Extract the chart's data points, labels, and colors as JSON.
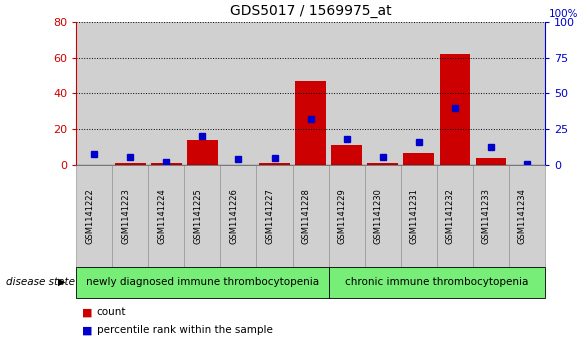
{
  "title": "GDS5017 / 1569975_at",
  "samples": [
    "GSM1141222",
    "GSM1141223",
    "GSM1141224",
    "GSM1141225",
    "GSM1141226",
    "GSM1141227",
    "GSM1141228",
    "GSM1141229",
    "GSM1141230",
    "GSM1141231",
    "GSM1141232",
    "GSM1141233",
    "GSM1141234"
  ],
  "counts": [
    0,
    1,
    1,
    14,
    0,
    1,
    47,
    11,
    1,
    7,
    62,
    4,
    0
  ],
  "percentiles": [
    8,
    6,
    2,
    20,
    4,
    5,
    32,
    18,
    6,
    16,
    40,
    13,
    1
  ],
  "ylim_left": [
    0,
    80
  ],
  "ylim_right": [
    0,
    100
  ],
  "yticks_left": [
    0,
    20,
    40,
    60,
    80
  ],
  "yticks_right": [
    0,
    25,
    50,
    75,
    100
  ],
  "bar_color": "#cc0000",
  "dot_color": "#0000cc",
  "group1_label": "newly diagnosed immune thrombocytopenia",
  "group2_label": "chronic immune thrombocytopenia",
  "group1_count": 7,
  "group2_count": 6,
  "disease_state_label": "disease state",
  "legend_count": "count",
  "legend_percentile": "percentile rank within the sample",
  "group_bg_color": "#77ee77",
  "col_bg_color": "#d0d0d0",
  "white": "#ffffff"
}
